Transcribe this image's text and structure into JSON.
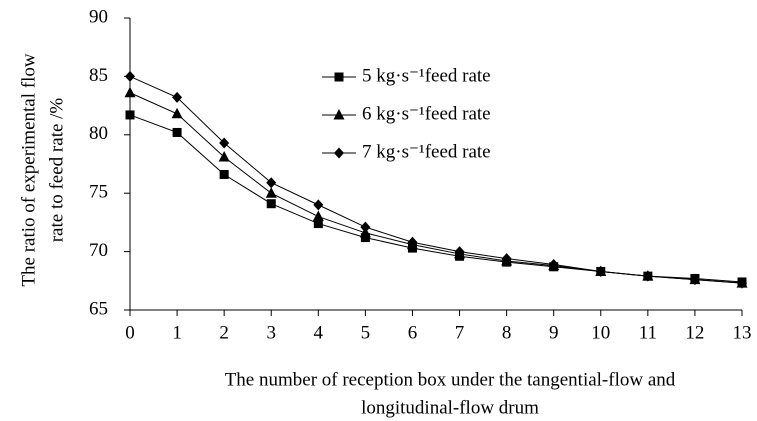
{
  "chart_data": {
    "type": "line",
    "x_label": [
      "The number of reception box under the tangential-flow and",
      "longitudinal-flow drum"
    ],
    "y_label": [
      "The ratio of experimental flow",
      "rate to feed rate /%"
    ],
    "x": [
      0,
      1,
      2,
      3,
      4,
      5,
      6,
      7,
      8,
      9,
      10,
      11,
      12,
      13
    ],
    "series": [
      {
        "name": "5 kg·s⁻¹feed rate",
        "color": "#000000",
        "marker": "square",
        "values": [
          81.7,
          80.2,
          76.6,
          74.1,
          72.4,
          71.2,
          70.3,
          69.6,
          69.1,
          68.7,
          68.3,
          67.9,
          67.7,
          67.4
        ]
      },
      {
        "name": "6 kg·s⁻¹feed rate",
        "color": "#000000",
        "marker": "triangle",
        "values": [
          83.6,
          81.8,
          78.1,
          75.0,
          73.0,
          71.6,
          70.6,
          69.8,
          69.2,
          68.8,
          68.3,
          67.9,
          67.6,
          67.3
        ]
      },
      {
        "name": "7 kg·s⁻¹feed rate",
        "color": "#000000",
        "marker": "diamond",
        "values": [
          85.0,
          83.2,
          79.3,
          75.9,
          74.0,
          72.1,
          70.8,
          70.0,
          69.4,
          68.9,
          68.3,
          67.9,
          67.6,
          67.3
        ]
      }
    ],
    "xlim": [
      0,
      13
    ],
    "xticks": [
      0,
      1,
      2,
      3,
      4,
      5,
      6,
      7,
      8,
      9,
      10,
      11,
      12,
      13
    ],
    "ylim": [
      65,
      90
    ],
    "yticks": [
      65,
      70,
      75,
      80,
      85,
      90
    ],
    "grid": false,
    "legend": "upper center"
  }
}
